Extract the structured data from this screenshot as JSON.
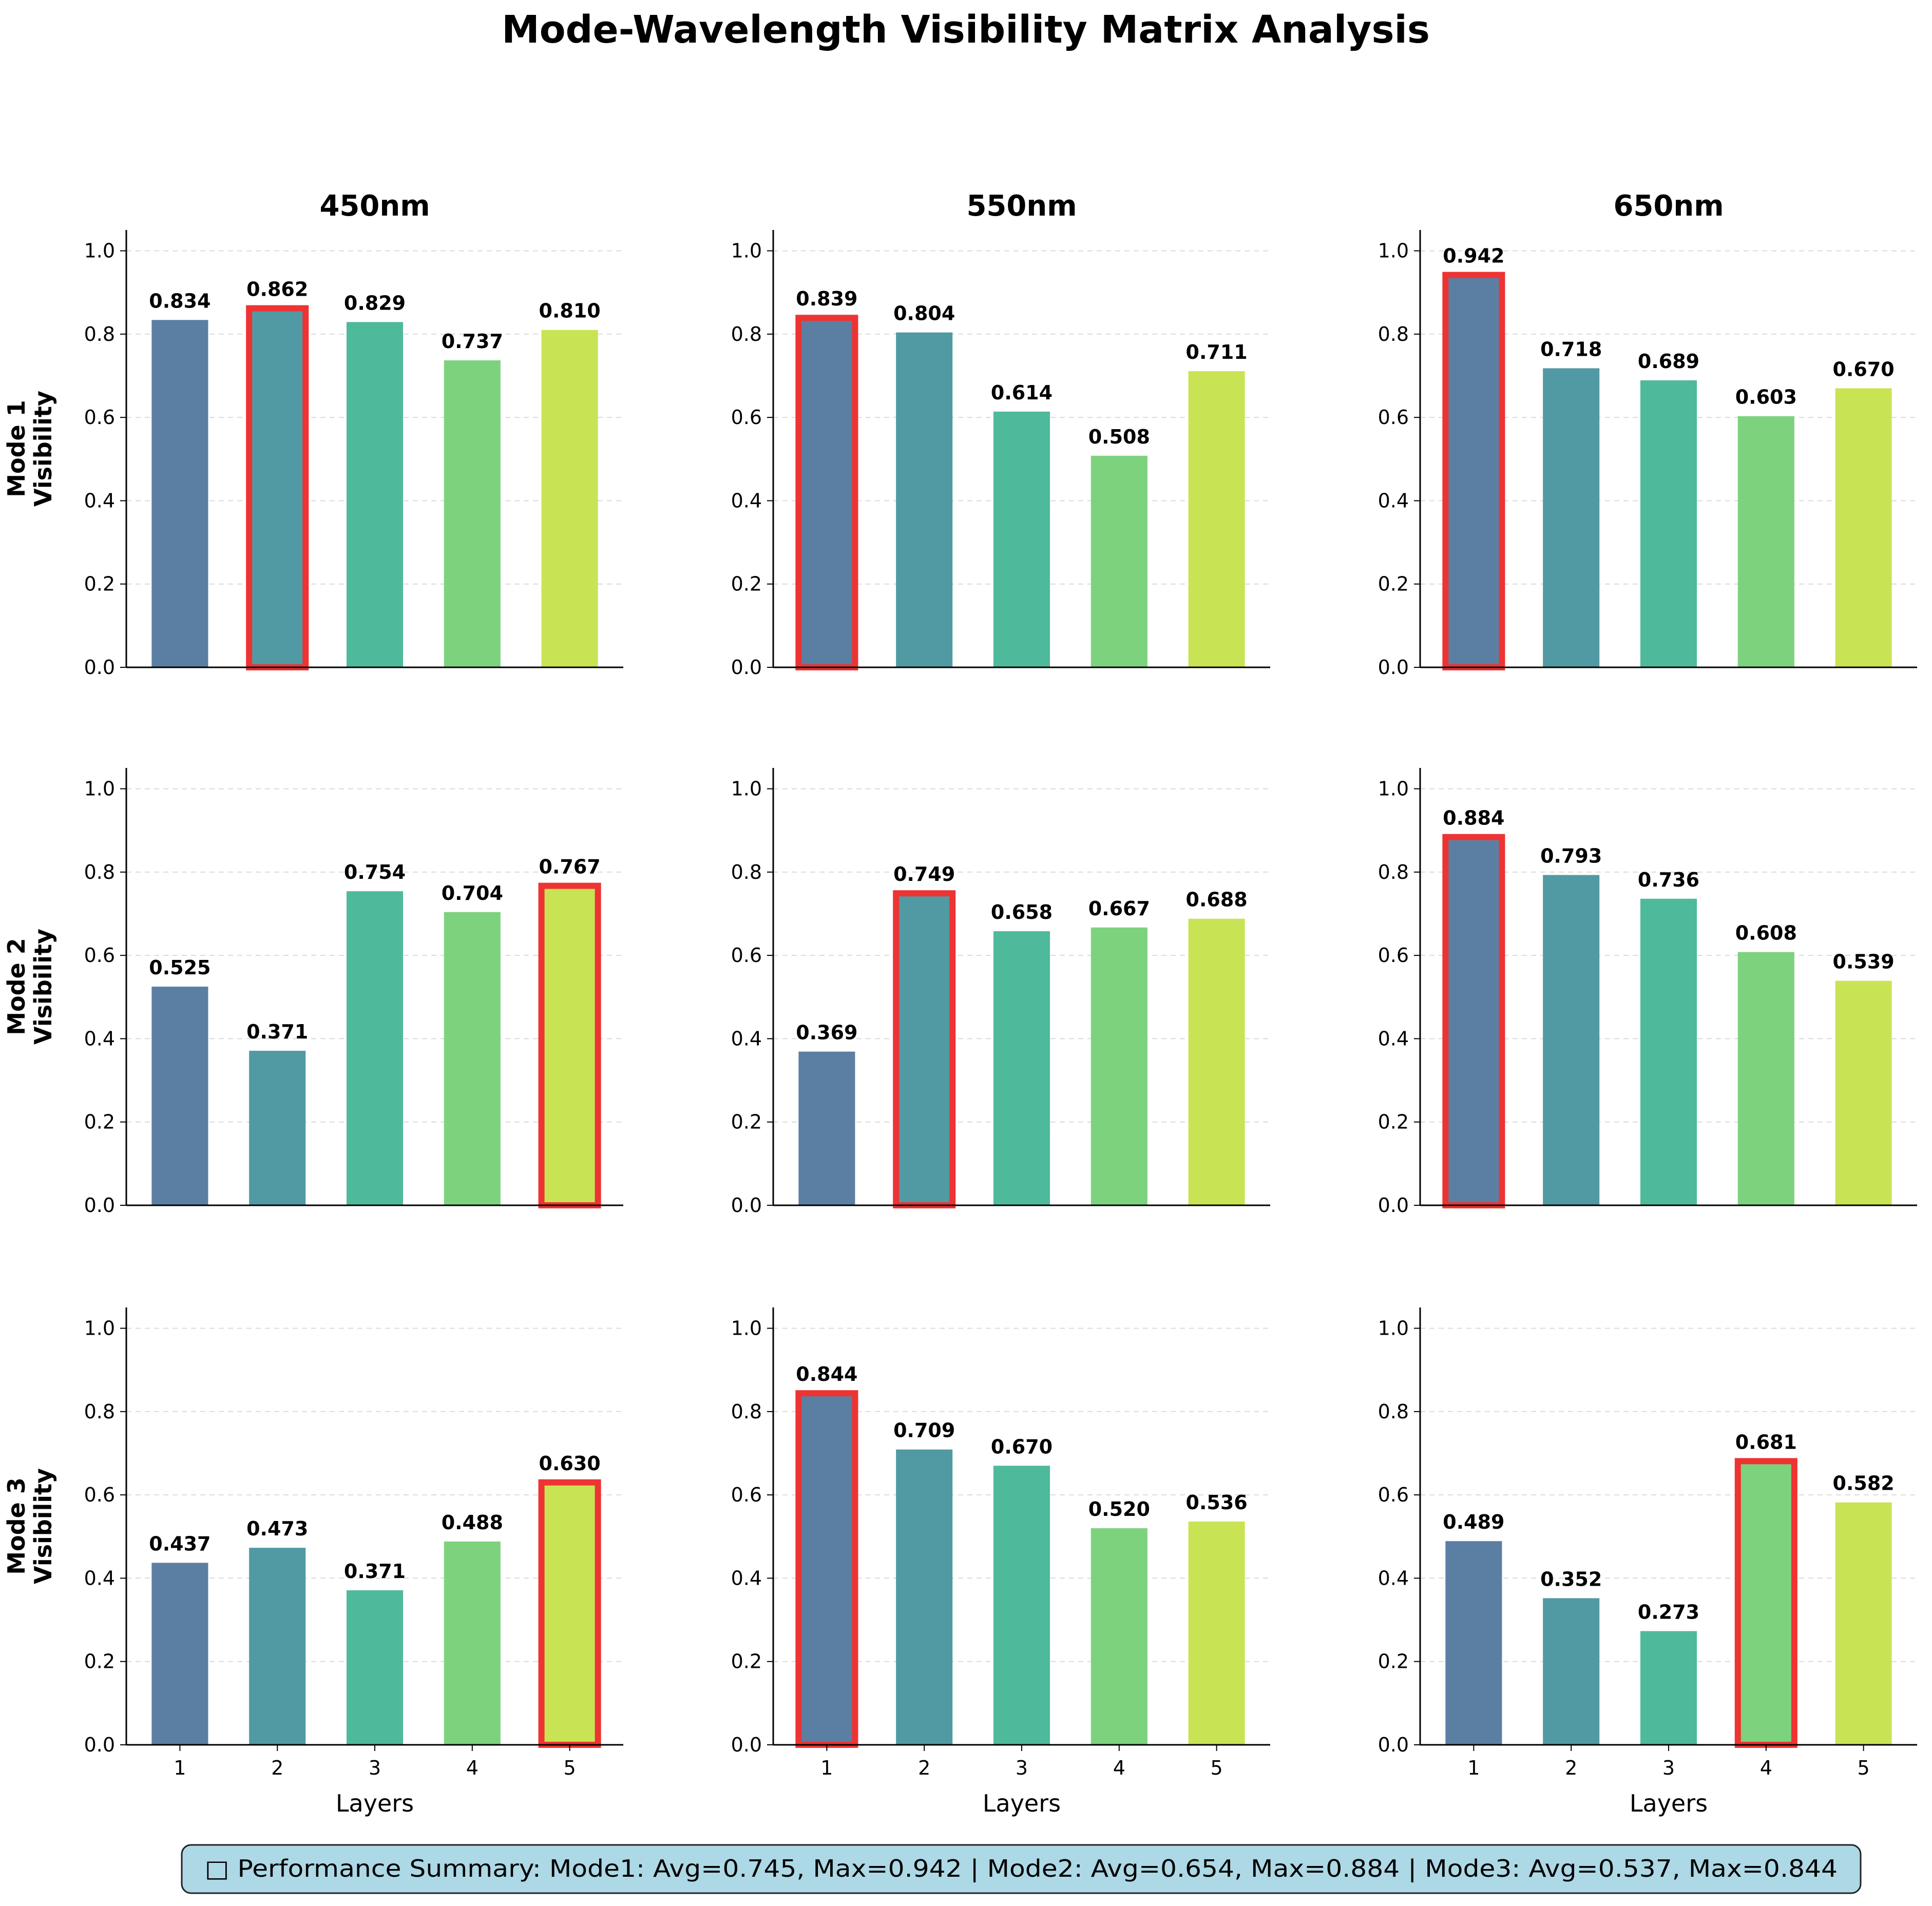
{
  "chart_data": {
    "type": "bar",
    "title": "Mode-Wavelength Visibility Matrix Analysis",
    "columns": [
      "450nm",
      "550nm",
      "650nm"
    ],
    "rows": [
      {
        "label_line1": "Mode 1",
        "label_line2": "Visibility"
      },
      {
        "label_line1": "Mode 2",
        "label_line2": "Visibility"
      },
      {
        "label_line1": "Mode 3",
        "label_line2": "Visibility"
      }
    ],
    "categories": [
      "1",
      "2",
      "3",
      "4",
      "5"
    ],
    "xlabel": "Layers",
    "ylim": [
      0,
      1.05
    ],
    "yticks": [
      "0.0",
      "0.2",
      "0.4",
      "0.6",
      "0.8",
      "1.0"
    ],
    "grid": "y-dashed",
    "bar_colors": [
      "#5b7fa3",
      "#519aa3",
      "#4fb99b",
      "#7dd27e",
      "#c8e454"
    ],
    "highlight_color": "#ee3333",
    "panels": [
      [
        {
          "values": [
            0.834,
            0.862,
            0.829,
            0.737,
            0.81
          ],
          "labels": [
            "0.834",
            "0.862",
            "0.829",
            "0.737",
            "0.810"
          ],
          "highlight": 1
        },
        {
          "values": [
            0.839,
            0.804,
            0.614,
            0.508,
            0.711
          ],
          "labels": [
            "0.839",
            "0.804",
            "0.614",
            "0.508",
            "0.711"
          ],
          "highlight": 0
        },
        {
          "values": [
            0.942,
            0.718,
            0.689,
            0.603,
            0.67
          ],
          "labels": [
            "0.942",
            "0.718",
            "0.689",
            "0.603",
            "0.670"
          ],
          "highlight": 0
        }
      ],
      [
        {
          "values": [
            0.525,
            0.371,
            0.754,
            0.704,
            0.767
          ],
          "labels": [
            "0.525",
            "0.371",
            "0.754",
            "0.704",
            "0.767"
          ],
          "highlight": 4
        },
        {
          "values": [
            0.369,
            0.749,
            0.658,
            0.667,
            0.688
          ],
          "labels": [
            "0.369",
            "0.749",
            "0.658",
            "0.667",
            "0.688"
          ],
          "highlight": 1
        },
        {
          "values": [
            0.884,
            0.793,
            0.736,
            0.608,
            0.539
          ],
          "labels": [
            "0.884",
            "0.793",
            "0.736",
            "0.608",
            "0.539"
          ],
          "highlight": 0
        }
      ],
      [
        {
          "values": [
            0.437,
            0.473,
            0.371,
            0.488,
            0.63
          ],
          "labels": [
            "0.437",
            "0.473",
            "0.371",
            "0.488",
            "0.630"
          ],
          "highlight": 4
        },
        {
          "values": [
            0.844,
            0.709,
            0.67,
            0.52,
            0.536
          ],
          "labels": [
            "0.844",
            "0.709",
            "0.670",
            "0.520",
            "0.536"
          ],
          "highlight": 0
        },
        {
          "values": [
            0.489,
            0.352,
            0.273,
            0.681,
            0.582
          ],
          "labels": [
            "0.489",
            "0.352",
            "0.273",
            "0.681",
            "0.582"
          ],
          "highlight": 3
        }
      ]
    ],
    "summary": "□ Performance Summary:  Mode1: Avg=0.745, Max=0.942  |  Mode2: Avg=0.654, Max=0.884  |  Mode3: Avg=0.537, Max=0.844",
    "summary_bg": "#add8e6"
  }
}
